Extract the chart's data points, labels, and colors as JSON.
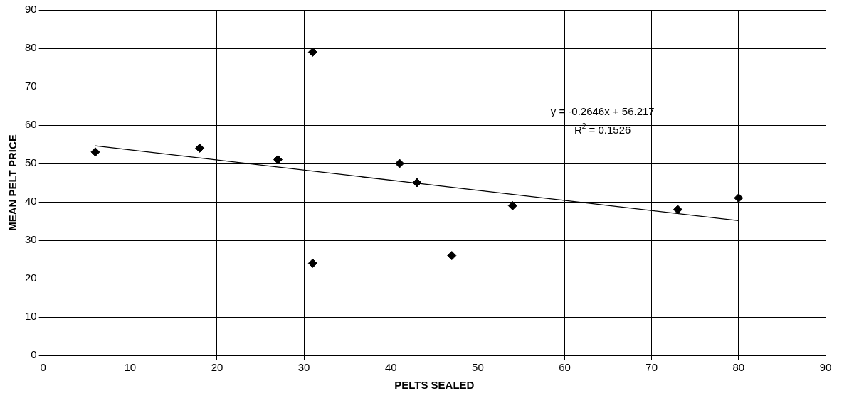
{
  "chart_data": {
    "type": "scatter",
    "xlabel": "PELTS SEALED",
    "ylabel": "MEAN PELT PRICE",
    "x": [
      6,
      18,
      27,
      31,
      31,
      41,
      43,
      47,
      54,
      73,
      80
    ],
    "series": [
      {
        "color": "#000000",
        "marker": "diamond",
        "values": [
          53,
          54,
          51,
          79,
          24,
          50,
          45,
          26,
          39,
          38,
          41
        ]
      },
      {
        "type": "line",
        "color": "#000000",
        "marker": "none",
        "x": [
          6,
          80
        ],
        "values": [
          54.6,
          35.1
        ]
      }
    ],
    "annotations": [
      "y = -0.2646x + 56.217",
      "R$^{2}$ = 0.1526"
    ],
    "xlim": [
      0,
      90
    ],
    "xticks": [
      0,
      10,
      20,
      30,
      40,
      50,
      60,
      70,
      80,
      90
    ],
    "ylim": [
      0,
      90
    ],
    "yticks": [
      0,
      10,
      20,
      30,
      40,
      50,
      60,
      70,
      80,
      90
    ],
    "grid": true,
    "legend": false
  }
}
